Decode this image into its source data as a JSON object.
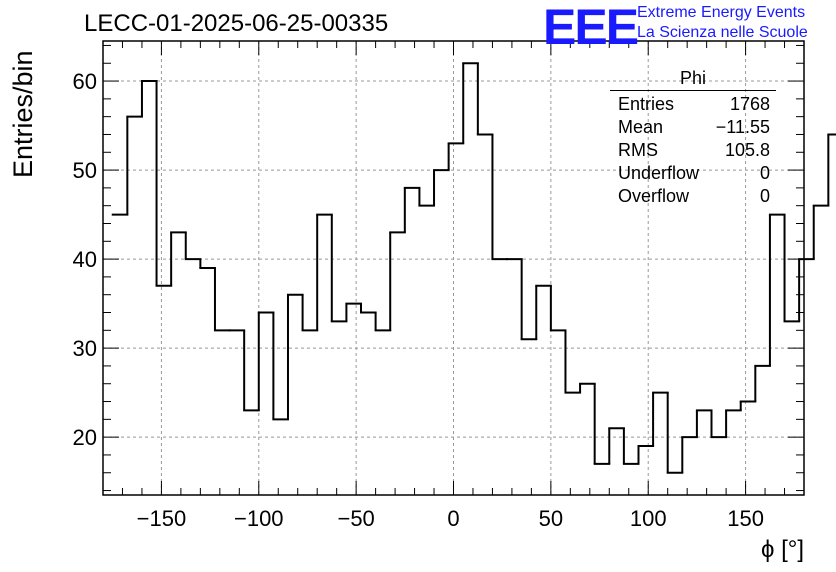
{
  "title": "LECC-01-2025-06-25-00335",
  "logo": {
    "mark": "EEE",
    "line1": "Extreme Energy Events",
    "line2": "La Scienza nelle Scuole",
    "color": "#1a1aff"
  },
  "stats": {
    "name": "Phi",
    "rows": [
      {
        "label": "Entries",
        "value": "1768"
      },
      {
        "label": "Mean",
        "value": "−11.55"
      },
      {
        "label": "RMS",
        "value": "105.8"
      },
      {
        "label": "Underflow",
        "value": "0"
      },
      {
        "label": "Overflow",
        "value": "0"
      }
    ]
  },
  "chart_data": {
    "type": "histogram",
    "ylabel": "Entries/bin",
    "xlabel": "ϕ [°]",
    "xlim": [
      -180,
      180
    ],
    "ylim": [
      13.5,
      64.5
    ],
    "xticks": [
      -150,
      -100,
      -50,
      0,
      50,
      100,
      150
    ],
    "xtick_labels": [
      "−150",
      "−100",
      "−50",
      "0",
      "50",
      "100",
      "150"
    ],
    "yticks": [
      20,
      30,
      40,
      50,
      60
    ],
    "ytick_labels": [
      "20",
      "30",
      "40",
      "50",
      "60"
    ],
    "grid": true,
    "bin_edges_start": -175,
    "bin_width": 7.5,
    "values": [
      45,
      56,
      60,
      37,
      43,
      40,
      39,
      32,
      32,
      23,
      34,
      22,
      36,
      32,
      45,
      33,
      35,
      34,
      32,
      43,
      48,
      46,
      50,
      53,
      62,
      54,
      40,
      40,
      31,
      37,
      32,
      25,
      26,
      17,
      21,
      17,
      19,
      25,
      16,
      20,
      23,
      20,
      23,
      24,
      28,
      45,
      33,
      40,
      46,
      54
    ]
  }
}
